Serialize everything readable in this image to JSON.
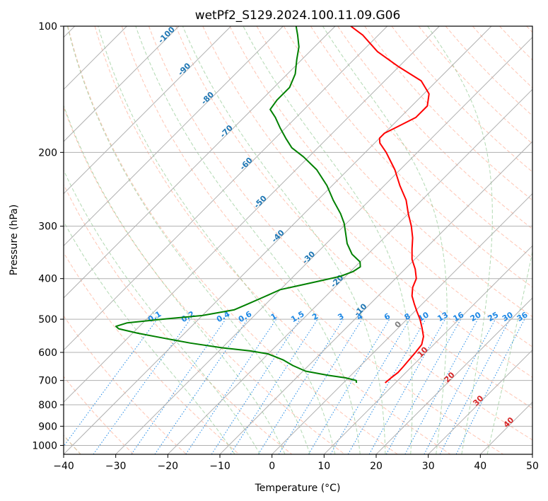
{
  "chart_data": {
    "type": "line",
    "title": "wetPf2_S129.2024.100.11.09.G06",
    "xlabel": "Temperature (°C)",
    "ylabel": "Pressure (hPa)",
    "xlim": [
      -40,
      50
    ],
    "ylim": [
      1050,
      100
    ],
    "y_scale": "log",
    "grid": true,
    "skew_deg": 45,
    "x_ticks": [
      -40,
      -30,
      -20,
      -10,
      0,
      10,
      20,
      30,
      40,
      50
    ],
    "y_ticks": [
      1000,
      900,
      800,
      700,
      600,
      500,
      400,
      300,
      200,
      100
    ],
    "series": [
      {
        "color": "#ff0000",
        "role": "temperature",
        "points": [
          [
            709,
            8.0
          ],
          [
            690,
            8.2
          ],
          [
            670,
            8.5
          ],
          [
            650,
            8.4
          ],
          [
            625,
            8.2
          ],
          [
            600,
            8.0
          ],
          [
            575,
            7.7
          ],
          [
            550,
            6.5
          ],
          [
            525,
            4.6
          ],
          [
            500,
            2.5
          ],
          [
            480,
            0.5
          ],
          [
            460,
            -1.5
          ],
          [
            440,
            -3.5
          ],
          [
            420,
            -5.0
          ],
          [
            400,
            -6.0
          ],
          [
            380,
            -8.0
          ],
          [
            360,
            -10.5
          ],
          [
            340,
            -12.5
          ],
          [
            320,
            -14.5
          ],
          [
            300,
            -17.0
          ],
          [
            280,
            -20.0
          ],
          [
            260,
            -23.0
          ],
          [
            240,
            -27.0
          ],
          [
            220,
            -31.0
          ],
          [
            200,
            -36.0
          ],
          [
            190,
            -39.0
          ],
          [
            185,
            -40.0
          ],
          [
            180,
            -40.0
          ],
          [
            175,
            -39.0
          ],
          [
            165,
            -37.0
          ],
          [
            155,
            -37.0
          ],
          [
            145,
            -39.0
          ],
          [
            135,
            -43.0
          ],
          [
            125,
            -50.0
          ],
          [
            115,
            -57.0
          ],
          [
            105,
            -63.0
          ],
          [
            100,
            -67.0
          ]
        ]
      },
      {
        "color": "#008000",
        "role": "dewpoint",
        "points": [
          [
            709,
            2.5
          ],
          [
            700,
            2.0
          ],
          [
            690,
            -0.5
          ],
          [
            680,
            -4.5
          ],
          [
            665,
            -9.5
          ],
          [
            645,
            -13.0
          ],
          [
            625,
            -16.0
          ],
          [
            605,
            -20.0
          ],
          [
            595,
            -24.0
          ],
          [
            585,
            -30.0
          ],
          [
            570,
            -37.0
          ],
          [
            555,
            -43.0
          ],
          [
            540,
            -49.0
          ],
          [
            527,
            -53.5
          ],
          [
            520,
            -54.5
          ],
          [
            510,
            -53.0
          ],
          [
            500,
            -47.0
          ],
          [
            490,
            -40.0
          ],
          [
            475,
            -35.0
          ],
          [
            460,
            -33.5
          ],
          [
            445,
            -32.0
          ],
          [
            435,
            -31.0
          ],
          [
            425,
            -30.0
          ],
          [
            415,
            -27.0
          ],
          [
            405,
            -24.0
          ],
          [
            395,
            -21.0
          ],
          [
            385,
            -19.5
          ],
          [
            375,
            -19.0
          ],
          [
            365,
            -20.0
          ],
          [
            350,
            -23.0
          ],
          [
            330,
            -26.0
          ],
          [
            310,
            -28.5
          ],
          [
            295,
            -30.5
          ],
          [
            280,
            -33.0
          ],
          [
            260,
            -37.0
          ],
          [
            240,
            -41.0
          ],
          [
            220,
            -46.0
          ],
          [
            205,
            -51.0
          ],
          [
            195,
            -55.0
          ],
          [
            185,
            -58.0
          ],
          [
            175,
            -61.0
          ],
          [
            165,
            -64.0
          ],
          [
            158,
            -66.5
          ],
          [
            150,
            -67.0
          ],
          [
            140,
            -67.0
          ],
          [
            130,
            -68.5
          ],
          [
            120,
            -71.0
          ],
          [
            112,
            -73.0
          ],
          [
            105,
            -75.5
          ],
          [
            100,
            -77.5
          ]
        ]
      }
    ],
    "isotherm_labels_blue": [
      "-100",
      "-90",
      "-80",
      "-70",
      "-60",
      "-50",
      "-40",
      "-30",
      "-20",
      "-10"
    ],
    "isotherm_labels_red": [
      "0",
      "10",
      "20",
      "30",
      "40"
    ],
    "mixing_ratio_labels": [
      "0.1",
      "0.2",
      "0.4",
      "0.6",
      "1",
      "1.5",
      "2",
      "3",
      "4",
      "6",
      "8",
      "10",
      "13",
      "16",
      "20",
      "25",
      "30",
      "36"
    ],
    "mixing_ratio_values": [
      0.1,
      0.2,
      0.4,
      0.6,
      1,
      1.5,
      2,
      3,
      4,
      6,
      8,
      10,
      13,
      16,
      20,
      25,
      30,
      36
    ],
    "colors": {
      "temperature": "#ff0000",
      "dewpoint": "#008000",
      "isotherm_label_cold": "#1f77b4",
      "isotherm_label_warm": "#d62728",
      "mixing_ratio": "#1e88e5",
      "dry_adiabat": "#ff9f80",
      "moist_adiabat": "#7fbf7f",
      "freezing_level": "#d2b48c",
      "grid": "#b0b0b0"
    }
  }
}
